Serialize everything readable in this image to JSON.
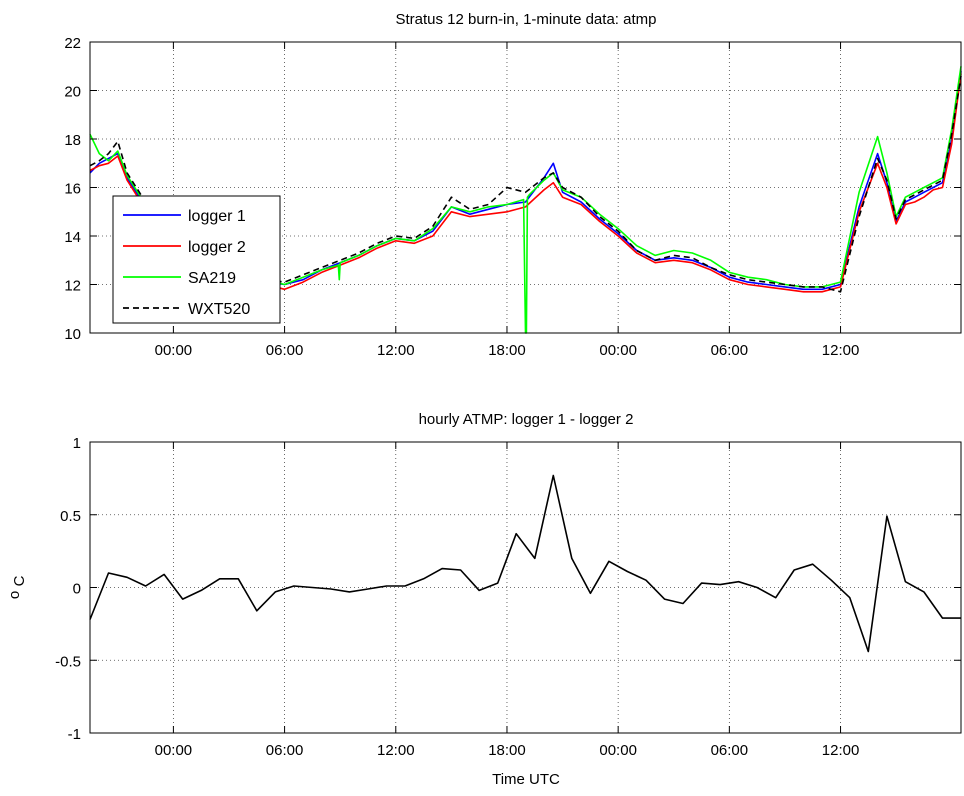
{
  "chart_data": [
    {
      "type": "line",
      "title": "Stratus 12 burn-in, 1-minute data: atmp",
      "xlabel": "",
      "ylabel": "",
      "x_unit": "hours from 00:00 of the first day shown",
      "xlim": [
        -4.5,
        42.5
      ],
      "ylim": [
        10,
        22
      ],
      "xticks": [
        0,
        6,
        12,
        18,
        24,
        30,
        36
      ],
      "xticklabels": [
        "00:00",
        "06:00",
        "12:00",
        "18:00",
        "00:00",
        "06:00",
        "12:00"
      ],
      "yticks": [
        10,
        12,
        14,
        16,
        18,
        20,
        22
      ],
      "yticklabels": [
        "10",
        "12",
        "14",
        "16",
        "18",
        "20",
        "22"
      ],
      "grid": true,
      "legend_position": "left",
      "series": [
        {
          "name": "logger 1",
          "color": "#0000ff",
          "dash": "solid",
          "x": [
            -4.5,
            -4,
            -3.5,
            -3,
            -2.5,
            -2,
            -1.5,
            -1,
            0,
            1,
            2,
            3,
            4,
            5,
            6,
            7,
            8,
            9,
            10,
            11,
            12,
            13,
            14,
            15,
            16,
            17,
            18,
            19,
            20,
            20.5,
            21,
            22,
            23,
            24,
            25,
            26,
            27,
            28,
            29,
            30,
            31,
            32,
            33,
            34,
            35,
            36,
            37,
            38,
            38.5,
            39,
            39.5,
            40,
            40.5,
            41,
            41.5,
            42,
            42.5
          ],
          "y": [
            16.6,
            17.0,
            17.2,
            17.4,
            16.4,
            15.8,
            15.2,
            14.8,
            14.3,
            13.6,
            13.0,
            12.6,
            12.3,
            12.1,
            12.0,
            12.2,
            12.6,
            12.9,
            13.2,
            13.6,
            13.9,
            13.8,
            14.2,
            15.2,
            14.9,
            15.1,
            15.3,
            15.4,
            16.4,
            17.0,
            15.8,
            15.4,
            14.7,
            14.1,
            13.4,
            13.0,
            13.1,
            13.0,
            12.7,
            12.3,
            12.1,
            12.0,
            11.9,
            11.8,
            11.8,
            12.0,
            15.2,
            17.4,
            16.2,
            14.6,
            15.4,
            15.6,
            15.8,
            16.0,
            16.2,
            18.0,
            20.8
          ]
        },
        {
          "name": "logger 2",
          "color": "#ff0000",
          "dash": "solid",
          "x": [
            -4.5,
            -4,
            -3.5,
            -3,
            -2.5,
            -2,
            -1.5,
            -1,
            0,
            1,
            2,
            3,
            4,
            5,
            6,
            7,
            8,
            9,
            10,
            11,
            12,
            13,
            14,
            15,
            16,
            17,
            18,
            19,
            20,
            20.5,
            21,
            22,
            23,
            24,
            25,
            26,
            27,
            28,
            29,
            30,
            31,
            32,
            33,
            34,
            35,
            36,
            37,
            38,
            38.5,
            39,
            39.5,
            40,
            40.5,
            41,
            41.5,
            42,
            42.5
          ],
          "y": [
            16.7,
            16.9,
            17.0,
            17.3,
            16.3,
            15.7,
            15.1,
            14.7,
            14.2,
            13.5,
            12.9,
            12.5,
            12.2,
            12.0,
            11.8,
            12.1,
            12.5,
            12.8,
            13.1,
            13.5,
            13.8,
            13.7,
            14.0,
            15.0,
            14.8,
            14.9,
            15.0,
            15.2,
            15.9,
            16.2,
            15.6,
            15.3,
            14.6,
            14.0,
            13.3,
            12.9,
            13.0,
            12.9,
            12.6,
            12.2,
            12.0,
            11.9,
            11.8,
            11.7,
            11.7,
            11.9,
            15.0,
            17.0,
            16.0,
            14.5,
            15.3,
            15.4,
            15.6,
            15.9,
            16.0,
            17.8,
            20.7
          ]
        },
        {
          "name": "SA219",
          "color": "#00ff00",
          "dash": "solid",
          "x": [
            -4.5,
            -4,
            -3.5,
            -3,
            -2.5,
            -2,
            -1.5,
            -1,
            0,
            1,
            2,
            3,
            4,
            5,
            6,
            7,
            8,
            8.9,
            8.95,
            9.0,
            10,
            11,
            12,
            13,
            14,
            15,
            16,
            17,
            18,
            18.9,
            19.0,
            19.05,
            19.1,
            19.2,
            20,
            20.5,
            21,
            22,
            23,
            24,
            25,
            26,
            27,
            28,
            29,
            30,
            31,
            32,
            33,
            34,
            35,
            36,
            37,
            38,
            38.5,
            39,
            39.5,
            40,
            40.5,
            41,
            41.5,
            42,
            42.5
          ],
          "y": [
            18.2,
            17.4,
            17.1,
            17.5,
            16.5,
            15.9,
            15.3,
            14.9,
            14.4,
            13.7,
            13.1,
            12.7,
            12.4,
            12.2,
            12.0,
            12.3,
            12.6,
            12.8,
            12.2,
            12.9,
            13.2,
            13.6,
            13.9,
            13.8,
            14.3,
            15.2,
            15.0,
            15.2,
            15.3,
            15.5,
            10.0,
            10.0,
            15.6,
            15.7,
            16.3,
            16.6,
            15.9,
            15.6,
            14.9,
            14.3,
            13.6,
            13.2,
            13.4,
            13.3,
            13.0,
            12.5,
            12.3,
            12.2,
            12.0,
            11.9,
            11.9,
            12.1,
            15.8,
            18.1,
            16.6,
            14.8,
            15.6,
            15.8,
            16.0,
            16.2,
            16.4,
            18.4,
            21.0
          ]
        },
        {
          "name": "WXT520",
          "color": "#000000",
          "dash": "dashed",
          "x": [
            -4.5,
            -4,
            -3.5,
            -3,
            -2.5,
            -2,
            -1.5,
            -1,
            0,
            1,
            2,
            3,
            4,
            5,
            6,
            7,
            8,
            9,
            10,
            11,
            12,
            13,
            14,
            15,
            16,
            17,
            18,
            19,
            20,
            20.5,
            21,
            22,
            23,
            24,
            25,
            26,
            27,
            28,
            29,
            30,
            31,
            32,
            33,
            34,
            35,
            36,
            37,
            38,
            38.5,
            39,
            39.5,
            40,
            40.5,
            41,
            41.5,
            42,
            42.5
          ],
          "y": [
            16.9,
            17.1,
            17.4,
            17.9,
            16.6,
            16.0,
            15.4,
            15.0,
            14.5,
            13.8,
            13.2,
            12.7,
            12.4,
            12.2,
            12.1,
            12.4,
            12.7,
            13.0,
            13.3,
            13.7,
            14.0,
            13.9,
            14.4,
            15.6,
            15.1,
            15.3,
            16.0,
            15.8,
            16.4,
            16.6,
            16.0,
            15.6,
            14.8,
            14.2,
            13.4,
            13.0,
            13.2,
            13.1,
            12.7,
            12.4,
            12.2,
            12.1,
            12.0,
            11.9,
            11.9,
            11.7,
            14.8,
            17.2,
            16.3,
            14.7,
            15.5,
            15.7,
            15.9,
            16.1,
            16.3,
            18.2,
            20.6
          ]
        }
      ],
      "legend": [
        {
          "label": "logger 1",
          "color": "#0000ff",
          "dash": "solid"
        },
        {
          "label": "logger 2",
          "color": "#ff0000",
          "dash": "solid"
        },
        {
          "label": "SA219",
          "color": "#00ff00",
          "dash": "solid"
        },
        {
          "label": "WXT520",
          "color": "#000000",
          "dash": "dashed"
        }
      ]
    },
    {
      "type": "line",
      "title": "hourly ATMP: logger 1 - logger 2",
      "xlabel": "Time UTC",
      "ylabel": "o C",
      "x_unit": "hours from 00:00 of the first day shown",
      "xlim": [
        -4.5,
        42.5
      ],
      "ylim": [
        -1,
        1
      ],
      "xticks": [
        0,
        6,
        12,
        18,
        24,
        30,
        36
      ],
      "xticklabels": [
        "00:00",
        "06:00",
        "12:00",
        "18:00",
        "00:00",
        "06:00",
        "12:00"
      ],
      "yticks": [
        -1,
        -0.5,
        0,
        0.5,
        1
      ],
      "yticklabels": [
        "-1",
        "-0.5",
        "0",
        "0.5",
        "1"
      ],
      "grid": true,
      "series": [
        {
          "color": "#000000",
          "x": [
            -4.5,
            -3.5,
            -2.5,
            -1.5,
            -0.5,
            0.5,
            1.5,
            2.5,
            3.5,
            4.5,
            5.5,
            6.5,
            7.5,
            8.5,
            9.5,
            10.5,
            11.5,
            12.5,
            13.5,
            14.5,
            15.5,
            16.5,
            17.5,
            18.5,
            19.5,
            20.5,
            21.5,
            22.5,
            23.5,
            24.5,
            25.5,
            26.5,
            27.5,
            28.5,
            29.5,
            30.5,
            31.5,
            32.5,
            33.5,
            34.5,
            35.5,
            36.5,
            37.5,
            38.5,
            39.5,
            40.5,
            41.5,
            42.5
          ],
          "y": [
            -0.22,
            0.1,
            0.07,
            0.01,
            0.09,
            -0.08,
            -0.02,
            0.06,
            0.06,
            -0.16,
            -0.03,
            0.01,
            0.0,
            -0.01,
            -0.03,
            -0.01,
            0.01,
            0.01,
            0.06,
            0.13,
            0.12,
            -0.02,
            0.03,
            0.37,
            0.2,
            0.77,
            0.2,
            -0.04,
            0.18,
            0.11,
            0.05,
            -0.08,
            -0.11,
            0.03,
            0.02,
            0.04,
            0.0,
            -0.07,
            0.12,
            0.16,
            0.05,
            -0.07,
            -0.44,
            0.49,
            0.04,
            -0.03,
            -0.21,
            -0.21
          ]
        }
      ]
    }
  ]
}
